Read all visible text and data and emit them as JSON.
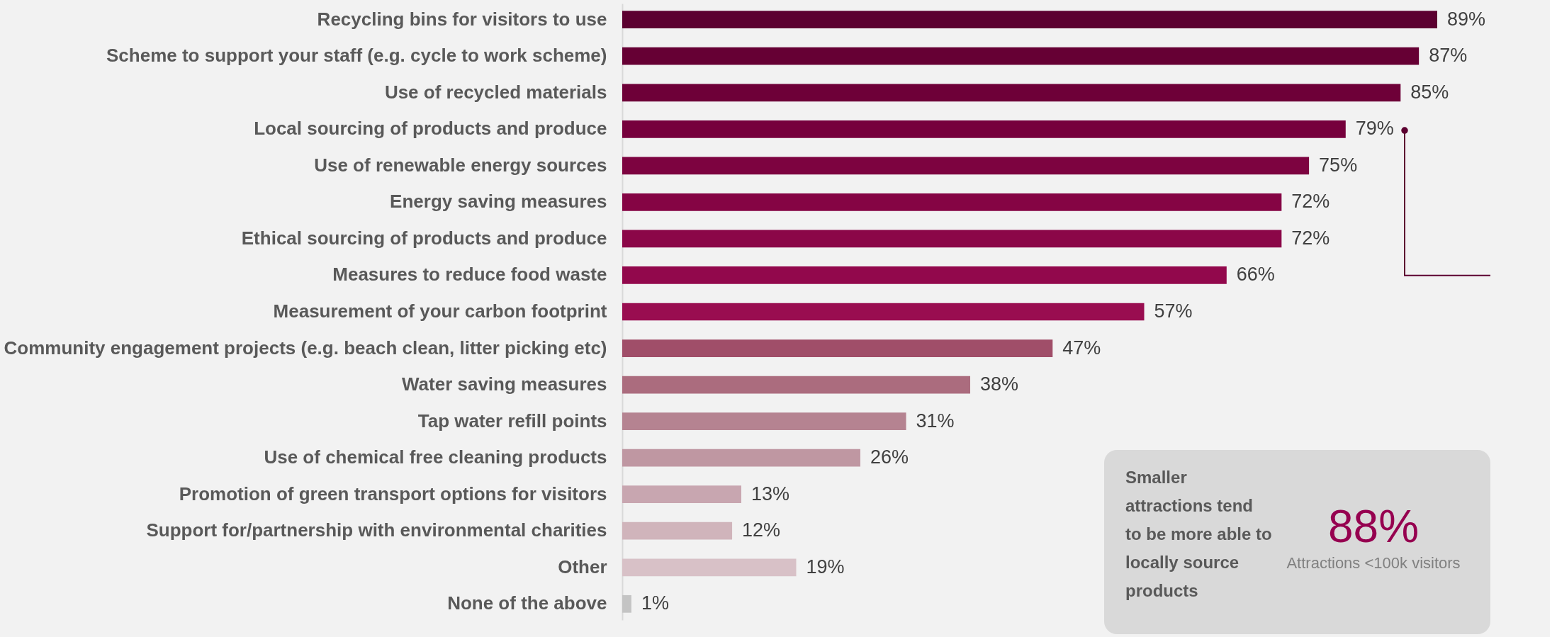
{
  "chart_data": {
    "type": "bar",
    "orientation": "horizontal",
    "categories": [
      "Recycling bins for visitors to use",
      "Scheme to support your staff (e.g. cycle to work scheme)",
      "Use of recycled materials",
      "Local sourcing of products and produce",
      "Use of renewable energy sources",
      "Energy saving measures",
      "Ethical sourcing of products and produce",
      "Measures to reduce food waste",
      "Measurement of your carbon footprint",
      "Community engagement projects (e.g. beach clean, litter picking etc)",
      "Water saving measures",
      "Tap water refill points",
      "Use of chemical free cleaning products",
      "Promotion of green transport options for visitors",
      "Support for/partnership with environmental charities",
      "Other",
      "None of the above"
    ],
    "values": [
      89,
      87,
      85,
      79,
      75,
      72,
      72,
      66,
      57,
      47,
      38,
      31,
      26,
      13,
      12,
      19,
      1
    ],
    "colors": [
      "#5c0030",
      "#660034",
      "#6e0038",
      "#76003c",
      "#7d0340",
      "#850444",
      "#8b0748",
      "#92084c",
      "#990d50",
      "#a04e69",
      "#ab6c7e",
      "#b58391",
      "#bf97a2",
      "#c8a6b0",
      "#d0b4bb",
      "#d8c1c7",
      "#c4c4c4"
    ],
    "value_labels": [
      "89%",
      "87%",
      "85%",
      "79%",
      "75%",
      "72%",
      "72%",
      "66%",
      "57%",
      "47%",
      "38%",
      "31%",
      "26%",
      "13%",
      "12%",
      "19%",
      "1%"
    ],
    "tick_labels": "y",
    "annotations": [
      "Smaller attractions tend to be more able to locally source products",
      "88%",
      "Attractions <100k visitors"
    ]
  }
}
